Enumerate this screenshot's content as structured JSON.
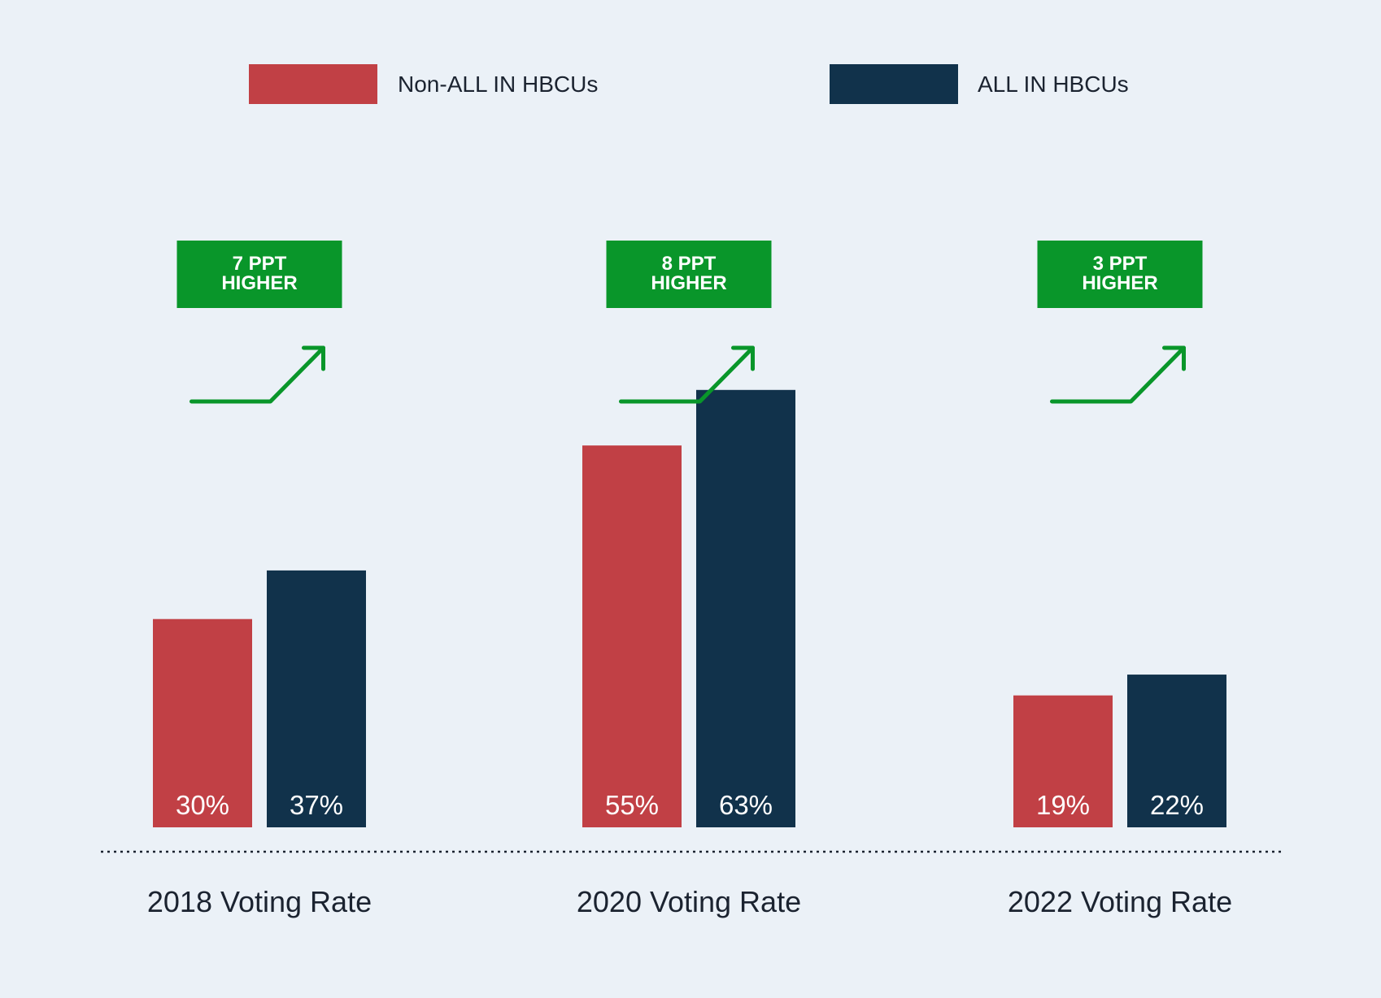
{
  "colors": {
    "background": "#ebf1f7",
    "non_all_in": "#c14045",
    "all_in": "#11324b",
    "highlight": "#09962a",
    "text": "#1b2330"
  },
  "chart_data": {
    "type": "bar",
    "title": "",
    "xlabel": "",
    "ylabel": "",
    "ylim": [
      0,
      70
    ],
    "grid": false,
    "legend_position": "top",
    "categories": [
      "2018 Voting Rate",
      "2020 Voting Rate",
      "2022 Voting Rate"
    ],
    "series": [
      {
        "name": "Non-ALL IN HBCUs",
        "color": "#c14045",
        "values": [
          30,
          55,
          19
        ],
        "labels": [
          "30%",
          "55%",
          "19%"
        ]
      },
      {
        "name": "ALL IN HBCUs",
        "color": "#11324b",
        "values": [
          37,
          63,
          22
        ],
        "labels": [
          "37%",
          "63%",
          "22%"
        ]
      }
    ],
    "annotations": [
      {
        "line1": "7 PPT",
        "line2": "HIGHER",
        "icon": "trend-up-arrow-icon"
      },
      {
        "line1": "8 PPT",
        "line2": "HIGHER",
        "icon": "trend-up-arrow-icon"
      },
      {
        "line1": "3 PPT",
        "line2": "HIGHER",
        "icon": "trend-up-arrow-icon"
      }
    ]
  }
}
